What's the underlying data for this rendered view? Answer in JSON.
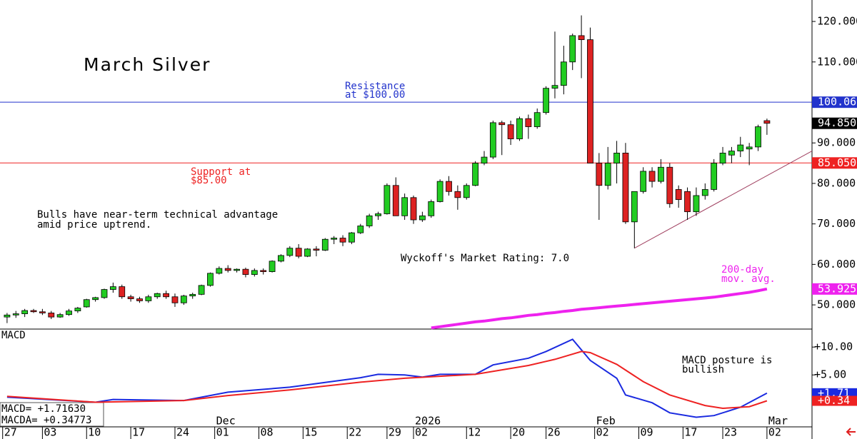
{
  "chart_data": [
    {
      "type": "candlestick",
      "title": "March Silver",
      "xlim": [
        -0.8,
        91.1
      ],
      "ylim": [
        44.2,
        125.3
      ],
      "yticks": [
        {
          "value": 50,
          "label": "50.000"
        },
        {
          "value": 60,
          "label": "60.000"
        },
        {
          "value": 70,
          "label": "70.000"
        },
        {
          "value": 80,
          "label": "80.000"
        },
        {
          "value": 90,
          "label": "90.000"
        },
        {
          "value": 100,
          "label": "100.000"
        },
        {
          "value": 110,
          "label": "110.000"
        },
        {
          "value": 120,
          "label": "120.000"
        }
      ],
      "up_color": "#22cc22",
      "down_color": "#dd2222",
      "open": [
        47,
        47.5,
        47.8,
        48.6,
        48.3,
        48,
        47,
        47.6,
        48.5,
        49.5,
        51.3,
        51.8,
        53.8,
        54.5,
        52,
        51.5,
        51,
        52,
        52.8,
        52,
        50.5,
        52.2,
        52.6,
        54.8,
        57.8,
        59,
        58.5,
        58.8,
        57.5,
        58.5,
        58.2,
        60.8,
        62.2,
        64,
        62,
        63.8,
        63.5,
        66.2,
        66.5,
        65.5,
        67.8,
        69.5,
        72,
        72.5,
        79.5,
        72,
        76.5,
        71,
        72,
        75.5,
        80.5,
        78,
        76.5,
        79.5,
        85,
        86.5,
        95,
        94.5,
        91,
        96,
        94,
        97.5,
        103.5,
        104.2,
        110,
        116.5,
        115.5,
        85,
        79.5,
        85,
        87.5,
        70.5,
        78,
        83,
        80.5,
        84,
        78.5,
        78,
        73,
        77,
        78.5,
        85,
        87,
        88,
        88.5,
        89,
        95.5
      ],
      "high": [
        48,
        48.5,
        49,
        49,
        49,
        48.5,
        48,
        49,
        49.5,
        51.5,
        52,
        54,
        55.5,
        55,
        52.5,
        52,
        52.5,
        53,
        53.5,
        52.8,
        52.5,
        53,
        55,
        58,
        59.5,
        59.8,
        59,
        59.2,
        59,
        59,
        61,
        62.5,
        64.5,
        65,
        64,
        64.5,
        66.5,
        67,
        67.2,
        68,
        70,
        72.5,
        73,
        80,
        81.5,
        77.5,
        77,
        73,
        76,
        81,
        81.8,
        79.5,
        80,
        85.5,
        88,
        95.5,
        95.5,
        95.5,
        96.5,
        97,
        98.5,
        104,
        117.5,
        114,
        117,
        121.5,
        118.5,
        87.5,
        89,
        90.5,
        90,
        78,
        84,
        84,
        86,
        85,
        79.5,
        79,
        79,
        80,
        86,
        89,
        89,
        91.5,
        90,
        94.5,
        96
      ],
      "low": [
        45.5,
        46.8,
        47,
        48,
        47.5,
        46.5,
        46.8,
        47.3,
        48,
        49.3,
        50.8,
        51.5,
        53,
        51.5,
        50.8,
        50.5,
        50.5,
        51.5,
        51.5,
        49.5,
        50,
        51.5,
        52.4,
        54.5,
        57.5,
        58,
        58,
        56.8,
        57,
        57.5,
        58,
        60.5,
        61.8,
        61.5,
        61.8,
        62,
        63.3,
        65,
        64.5,
        65,
        67.5,
        69,
        71,
        72.3,
        72,
        71,
        70,
        70.5,
        71.5,
        75.3,
        77,
        73.5,
        76,
        79.3,
        84.5,
        86,
        87,
        89.5,
        90.5,
        91,
        93.5,
        97,
        101,
        102,
        108,
        106,
        85,
        71,
        78.5,
        80,
        70,
        64,
        77.5,
        79,
        80,
        74,
        74,
        71,
        72,
        76,
        78,
        84.5,
        85,
        86.5,
        84.5,
        88,
        92
      ],
      "close": [
        47.5,
        47.8,
        48.6,
        48.3,
        48,
        47,
        47.6,
        48.5,
        49.2,
        51.3,
        51.8,
        53.8,
        54.5,
        52,
        51.5,
        51,
        52,
        52.8,
        52,
        50.5,
        52.2,
        52.6,
        54.8,
        57.8,
        59,
        58.5,
        58.8,
        57.5,
        58.5,
        58.2,
        60.8,
        62.2,
        64,
        62,
        63.8,
        63.5,
        66.2,
        66.5,
        65.5,
        67.8,
        69.5,
        72,
        72.5,
        79.5,
        72,
        76.5,
        71,
        72,
        75.5,
        80.5,
        78,
        76.5,
        79.5,
        85,
        86.5,
        95,
        94.5,
        91,
        96,
        94,
        97.5,
        103.5,
        104.2,
        110,
        116.5,
        115.5,
        85,
        79.5,
        85,
        87.5,
        70.5,
        78,
        83,
        80.5,
        84,
        75,
        76,
        73,
        77,
        78.5,
        85,
        87.5,
        88,
        89.5,
        89,
        94,
        94.85
      ],
      "moving_average": {
        "label": [
          "200-day",
          "mov. avg."
        ],
        "color": "#ee22ee",
        "values": [
          null,
          null,
          null,
          null,
          null,
          null,
          null,
          null,
          null,
          null,
          null,
          null,
          null,
          null,
          null,
          null,
          null,
          null,
          null,
          null,
          null,
          null,
          null,
          null,
          null,
          null,
          null,
          null,
          null,
          null,
          null,
          null,
          null,
          null,
          null,
          null,
          null,
          null,
          null,
          null,
          null,
          null,
          null,
          null,
          null,
          null,
          null,
          null,
          44.3,
          44.6,
          44.9,
          45.2,
          45.5,
          45.8,
          46.0,
          46.3,
          46.6,
          46.8,
          47.1,
          47.4,
          47.6,
          47.9,
          48.1,
          48.4,
          48.6,
          48.9,
          49.1,
          49.3,
          49.5,
          49.7,
          49.9,
          50.1,
          50.3,
          50.5,
          50.7,
          50.9,
          51.1,
          51.3,
          51.5,
          51.7,
          51.9,
          52.2,
          52.5,
          52.8,
          53.1,
          53.5,
          53.925
        ],
        "marker": {
          "value": 53.925,
          "label": "53.925"
        }
      },
      "hlines": [
        {
          "value": 100.06,
          "color": "#2233cc",
          "marker_label": "100.060",
          "note": [
            "Resistance",
            "at $100.00"
          ]
        },
        {
          "value": 85.05,
          "color": "#ee2222",
          "marker_label": "85.050",
          "note": [
            "Support at",
            "$85.00"
          ]
        }
      ],
      "last_price": {
        "value": 94.85,
        "label": "94.850"
      },
      "trendline": {
        "x": [
          71,
          91.1
        ],
        "y": [
          64,
          88
        ],
        "color": "#a04060"
      },
      "commentary": [
        "Bulls have near-term technical advantage",
        "amid price uptrend."
      ],
      "rating": "Wyckoff's Market Rating: 7.0"
    },
    {
      "type": "macd",
      "title": "MACD",
      "xlim": [
        -0.8,
        91.1
      ],
      "ylim": [
        -3.3,
        13.1
      ],
      "yticks": [
        {
          "value": 5,
          "label": "+5.00"
        },
        {
          "value": 10,
          "label": "+10.00"
        }
      ],
      "series": [
        {
          "color": "#1a2ae0",
          "last_label": "+1.71",
          "x": [
            0,
            10,
            12,
            20,
            25,
            32,
            40,
            42,
            45,
            47,
            49,
            53,
            55,
            59,
            61,
            64,
            66,
            69,
            70,
            73,
            75,
            78,
            80,
            83,
            86
          ],
          "values": [
            1.0,
            0.1,
            0.6,
            0.4,
            1.9,
            2.8,
            4.5,
            5.1,
            5.0,
            4.6,
            5.1,
            5.1,
            6.8,
            8.0,
            9.2,
            11.4,
            7.6,
            4.4,
            1.4,
            0.0,
            -1.8,
            -2.6,
            -2.3,
            -0.8,
            1.7163
          ]
        },
        {
          "color": "#ee2222",
          "last_label": "+0.34",
          "x": [
            0,
            10,
            20,
            25,
            32,
            40,
            45,
            53,
            59,
            62,
            65,
            66,
            69,
            72,
            75,
            79,
            81,
            84,
            86
          ],
          "values": [
            1.15,
            0.1,
            0.4,
            1.3,
            2.3,
            3.7,
            4.4,
            5.1,
            6.7,
            7.8,
            9.2,
            9.0,
            6.9,
            3.8,
            1.4,
            -0.5,
            -1.0,
            -0.7,
            0.34773
          ]
        }
      ],
      "readouts": [
        "MACD= +1.71630",
        "MACDA= +0.34773"
      ],
      "note": [
        "MACD posture is",
        "bullish"
      ],
      "xticks": [
        {
          "value": -0.5,
          "label": "27"
        },
        {
          "value": 4,
          "label": "03"
        },
        {
          "value": 9,
          "label": "10"
        },
        {
          "value": 14,
          "label": "17"
        },
        {
          "value": 19,
          "label": "24"
        },
        {
          "value": 23.5,
          "label": "01"
        },
        {
          "value": 28.5,
          "label": "08"
        },
        {
          "value": 33.5,
          "label": "15"
        },
        {
          "value": 38.5,
          "label": "22"
        },
        {
          "value": 43,
          "label": "29"
        },
        {
          "value": 46,
          "label": "02"
        },
        {
          "value": 52,
          "label": "12"
        },
        {
          "value": 57,
          "label": "20"
        },
        {
          "value": 61,
          "label": "26"
        },
        {
          "value": 66.5,
          "label": "02"
        },
        {
          "value": 71.5,
          "label": "09"
        },
        {
          "value": 76.5,
          "label": "17"
        },
        {
          "value": 81,
          "label": "23"
        },
        {
          "value": 86,
          "label": "02"
        }
      ],
      "month_ticks": [
        {
          "value": 23.5,
          "label": "Dec"
        },
        {
          "value": 46,
          "label": "2026"
        },
        {
          "value": 66.5,
          "label": "Feb"
        },
        {
          "value": 86,
          "label": "Mar"
        }
      ]
    }
  ]
}
